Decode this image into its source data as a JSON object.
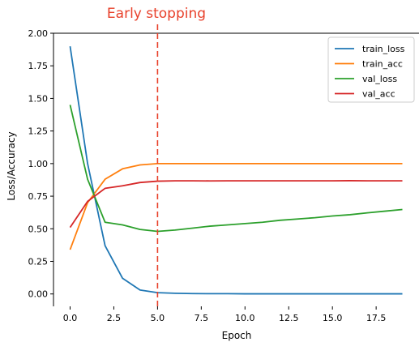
{
  "chart_data": {
    "type": "line",
    "annotation": "Early stopping",
    "annotation_color": "#e8402a",
    "early_stopping_x": 5.0,
    "xlabel": "Epoch",
    "ylabel": "Loss/Accuracy",
    "xlim": [
      -0.95,
      19.95
    ],
    "ylim": [
      -0.095,
      2.0
    ],
    "xticks": [
      "0.0",
      "2.5",
      "5.0",
      "7.5",
      "10.0",
      "12.5",
      "15.0",
      "17.5"
    ],
    "xtick_values": [
      0,
      2.5,
      5,
      7.5,
      10,
      12.5,
      15,
      17.5
    ],
    "yticks": [
      "0.00",
      "0.25",
      "0.50",
      "0.75",
      "1.00",
      "1.25",
      "1.50",
      "1.75",
      "2.00"
    ],
    "ytick_values": [
      0,
      0.25,
      0.5,
      0.75,
      1.0,
      1.25,
      1.5,
      1.75,
      2.0
    ],
    "grid": false,
    "legend_position": "top-right",
    "x": [
      0,
      1,
      2,
      3,
      4,
      5,
      6,
      7,
      8,
      9,
      10,
      11,
      12,
      13,
      14,
      15,
      16,
      17,
      18,
      19
    ],
    "series": [
      {
        "name": "train_loss",
        "color": "#1f77b4",
        "values": [
          1.9,
          1.0,
          0.37,
          0.12,
          0.03,
          0.01,
          0.005,
          0.003,
          0.002,
          0.002,
          0.001,
          0.001,
          0.001,
          0.001,
          0.001,
          0.001,
          0.001,
          0.001,
          0.001,
          0.001
        ]
      },
      {
        "name": "train_acc",
        "color": "#ff7f0e",
        "values": [
          0.34,
          0.7,
          0.88,
          0.96,
          0.99,
          1.0,
          1.0,
          1.0,
          1.0,
          1.0,
          1.0,
          1.0,
          1.0,
          1.0,
          1.0,
          1.0,
          1.0,
          1.0,
          1.0,
          1.0
        ]
      },
      {
        "name": "val_loss",
        "color": "#2ca02c",
        "values": [
          1.45,
          0.88,
          0.55,
          0.53,
          0.495,
          0.48,
          0.49,
          0.505,
          0.52,
          0.53,
          0.54,
          0.55,
          0.565,
          0.575,
          0.585,
          0.598,
          0.608,
          0.622,
          0.635,
          0.648
        ]
      },
      {
        "name": "val_acc",
        "color": "#d62728",
        "values": [
          0.51,
          0.71,
          0.81,
          0.83,
          0.855,
          0.865,
          0.868,
          0.868,
          0.867,
          0.868,
          0.868,
          0.868,
          0.868,
          0.868,
          0.868,
          0.868,
          0.869,
          0.868,
          0.868,
          0.868
        ]
      }
    ]
  }
}
